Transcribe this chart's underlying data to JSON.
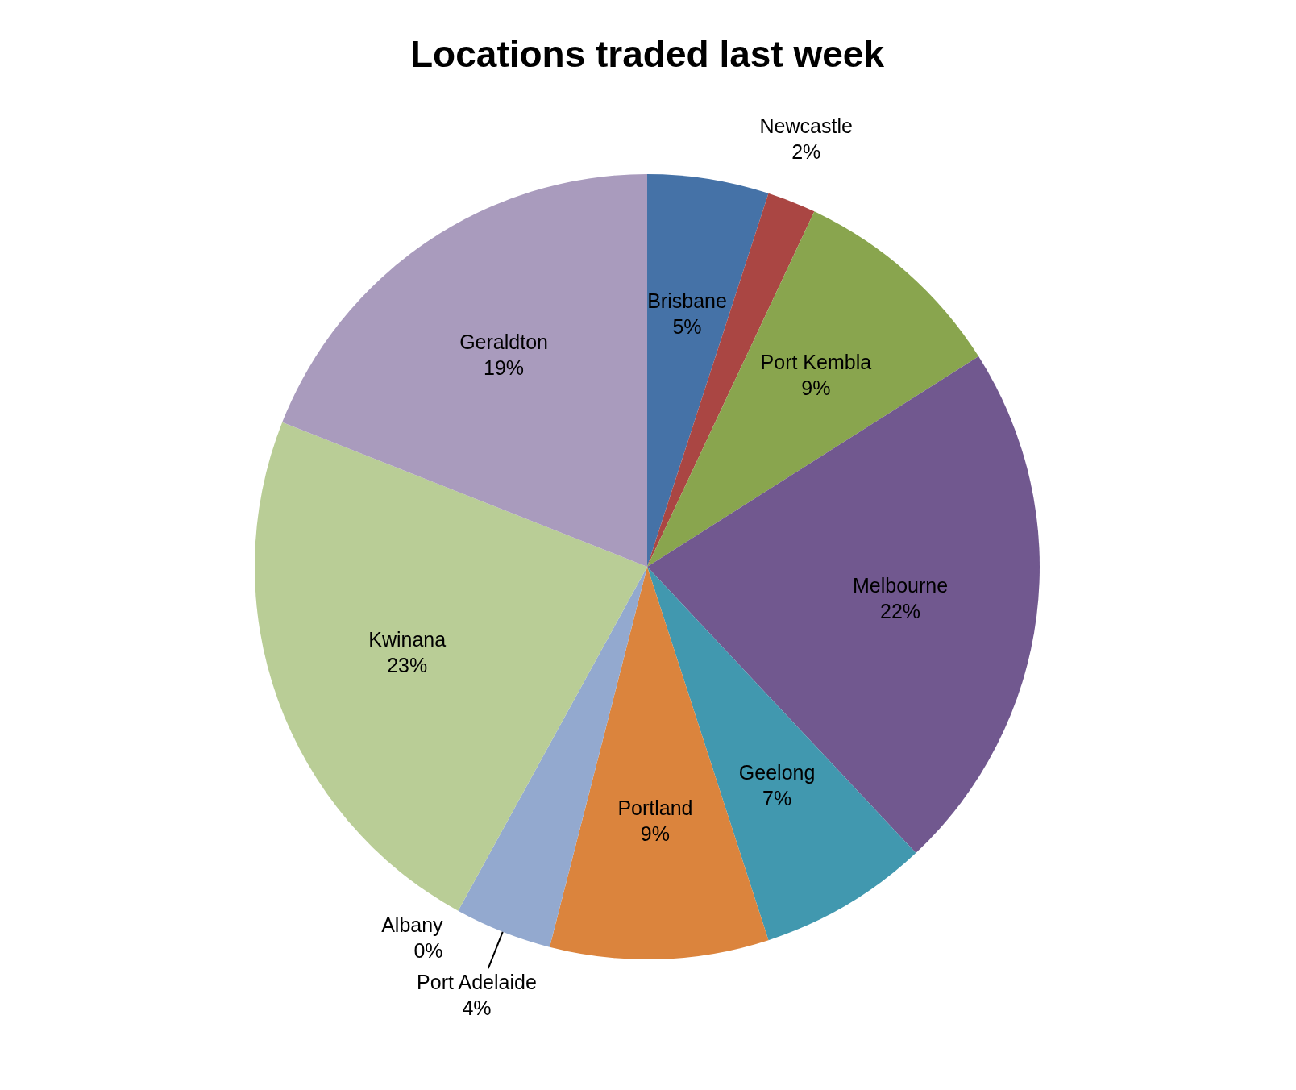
{
  "chart_data": {
    "type": "pie",
    "title": "Locations traded last week",
    "categories": [
      "Brisbane",
      "Newcastle",
      "Port Kembla",
      "Melbourne",
      "Geelong",
      "Portland",
      "Port Adelaide",
      "Albany",
      "Kwinana",
      "Geraldton"
    ],
    "values": [
      5,
      2,
      9,
      22,
      7,
      9,
      4,
      0,
      23,
      19
    ],
    "value_labels": [
      "5%",
      "2%",
      "9%",
      "22%",
      "7%",
      "9%",
      "4%",
      "0%",
      "23%",
      "19%"
    ],
    "colors": [
      "#4572a7",
      "#aa4643",
      "#89a54e",
      "#71588f",
      "#4198af",
      "#db843d",
      "#93a9cf",
      "#d19392",
      "#b9cd96",
      "#a99bbd"
    ]
  }
}
